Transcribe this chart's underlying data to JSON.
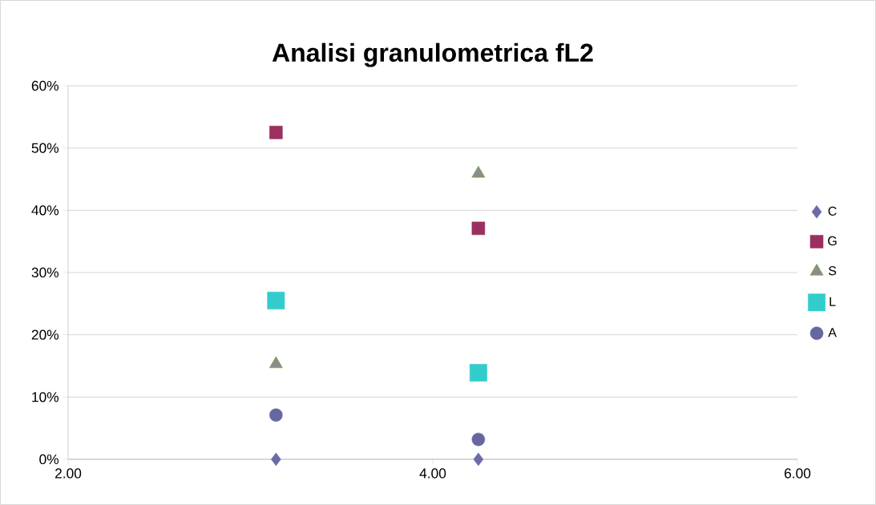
{
  "chart_data": {
    "type": "scatter",
    "title": "**Analisi granulometrica fL2**",
    "x": [
      3.14,
      4.25
    ],
    "series": [
      {
        "name": "C",
        "color": "#6b6ba8",
        "marker": "diamond",
        "values": [
          0,
          0
        ]
      },
      {
        "name": "G",
        "color": "#9b3060",
        "marker": "square",
        "values": [
          52.5,
          37.1
        ]
      },
      {
        "name": "S",
        "color": "#8c8c8c",
        "marker": "triangle",
        "values": [
          15.3,
          45.9
        ]
      },
      {
        "name": "L",
        "color": "#33cccc",
        "marker": "square",
        "values": [
          25.5,
          13.9
        ]
      },
      {
        "name": "A",
        "color": "#6666a0",
        "marker": "circle",
        "values": [
          7.1,
          3.2
        ]
      }
    ],
    "xlim": [
      2,
      6
    ],
    "ylim": [
      0,
      60
    ],
    "xticks": [
      {
        "value": 2,
        "label": "2.00"
      },
      {
        "value": 4,
        "label": "4.00"
      },
      {
        "value": 6,
        "label": "6.00"
      }
    ],
    "yticks": [
      {
        "value": 0,
        "label": "0%"
      },
      {
        "value": 10,
        "label": "10%"
      },
      {
        "value": 20,
        "label": "20%"
      },
      {
        "value": 30,
        "label": "30%"
      },
      {
        "value": 40,
        "label": "40%"
      },
      {
        "value": 50,
        "label": "50%"
      },
      {
        "value": 60,
        "label": "60%"
      }
    ],
    "grid": "y",
    "legend": "right"
  }
}
